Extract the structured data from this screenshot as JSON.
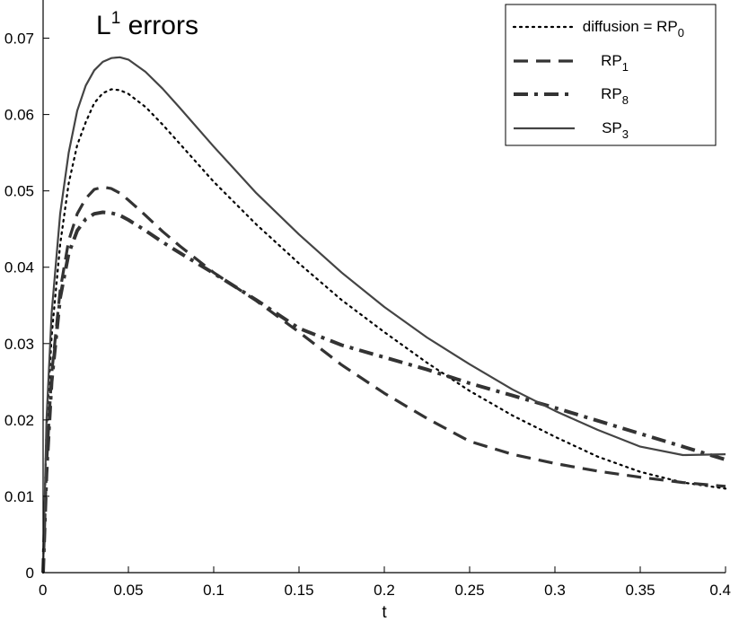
{
  "chart_data": {
    "type": "line",
    "title": "L",
    "title_sup": "1",
    "title_rest": " errors",
    "xlabel": "t",
    "ylabel": "",
    "xlim": [
      0,
      0.4
    ],
    "ylim": [
      0,
      0.075
    ],
    "xticks": [
      0,
      0.05,
      0.1,
      0.15,
      0.2,
      0.25,
      0.3,
      0.35,
      0.4
    ],
    "xtick_labels": [
      "0",
      "0.05",
      "0.1",
      "0.15",
      "0.2",
      "0.25",
      "0.3",
      "0.35",
      "0.4"
    ],
    "yticks": [
      0,
      0.01,
      0.02,
      0.03,
      0.04,
      0.05,
      0.06,
      0.07
    ],
    "ytick_labels": [
      "0",
      "0.01",
      "0.02",
      "0.03",
      "0.04",
      "0.05",
      "0.06",
      "0.07"
    ],
    "grid": false,
    "legend_position": "top-right",
    "series": [
      {
        "name": "diffusion = RP",
        "sub": "0",
        "style": "dotted",
        "color": "#000000",
        "x": [
          0,
          0.002,
          0.005,
          0.01,
          0.015,
          0.02,
          0.025,
          0.03,
          0.035,
          0.04,
          0.045,
          0.05,
          0.06,
          0.07,
          0.08,
          0.1,
          0.125,
          0.15,
          0.175,
          0.2,
          0.225,
          0.25,
          0.275,
          0.3,
          0.325,
          0.35,
          0.375,
          0.4
        ],
        "y": [
          0,
          0.019,
          0.031,
          0.043,
          0.051,
          0.056,
          0.059,
          0.0615,
          0.0628,
          0.0633,
          0.0632,
          0.0627,
          0.061,
          0.0587,
          0.0562,
          0.0512,
          0.0456,
          0.0405,
          0.0357,
          0.0315,
          0.0275,
          0.0238,
          0.0206,
          0.0178,
          0.0152,
          0.0132,
          0.0118,
          0.011
        ]
      },
      {
        "name": "RP",
        "sub": "1",
        "style": "dashed",
        "color": "#333333",
        "x": [
          0,
          0.002,
          0.005,
          0.01,
          0.015,
          0.02,
          0.025,
          0.03,
          0.035,
          0.04,
          0.045,
          0.05,
          0.06,
          0.07,
          0.08,
          0.1,
          0.125,
          0.15,
          0.175,
          0.2,
          0.225,
          0.25,
          0.275,
          0.3,
          0.325,
          0.35,
          0.375,
          0.4
        ],
        "y": [
          0,
          0.014,
          0.026,
          0.037,
          0.0435,
          0.047,
          0.049,
          0.0502,
          0.0505,
          0.0503,
          0.0497,
          0.0488,
          0.0468,
          0.0447,
          0.0428,
          0.0393,
          0.0356,
          0.0315,
          0.0272,
          0.0235,
          0.0202,
          0.0172,
          0.0155,
          0.0143,
          0.0133,
          0.0125,
          0.0118,
          0.0113
        ]
      },
      {
        "name": "RP",
        "sub": "8",
        "style": "dashdot",
        "color": "#333333",
        "x": [
          0,
          0.002,
          0.005,
          0.01,
          0.015,
          0.02,
          0.025,
          0.03,
          0.035,
          0.04,
          0.045,
          0.05,
          0.06,
          0.07,
          0.08,
          0.1,
          0.125,
          0.15,
          0.175,
          0.2,
          0.225,
          0.25,
          0.275,
          0.3,
          0.325,
          0.35,
          0.375,
          0.4
        ],
        "y": [
          0,
          0.013,
          0.025,
          0.036,
          0.0418,
          0.0448,
          0.0463,
          0.047,
          0.0472,
          0.0471,
          0.0468,
          0.0462,
          0.0448,
          0.0433,
          0.0419,
          0.0392,
          0.0357,
          0.032,
          0.0298,
          0.0282,
          0.0266,
          0.0248,
          0.0232,
          0.0216,
          0.0199,
          0.0182,
          0.0165,
          0.0148
        ]
      },
      {
        "name": "SP",
        "sub": "3",
        "style": "solid",
        "color": "#444444",
        "x": [
          0,
          0.002,
          0.005,
          0.01,
          0.015,
          0.02,
          0.025,
          0.03,
          0.035,
          0.04,
          0.045,
          0.05,
          0.06,
          0.07,
          0.08,
          0.1,
          0.125,
          0.15,
          0.175,
          0.2,
          0.225,
          0.25,
          0.275,
          0.3,
          0.325,
          0.35,
          0.375,
          0.4
        ],
        "y": [
          0,
          0.02,
          0.034,
          0.047,
          0.055,
          0.0605,
          0.0638,
          0.0658,
          0.0669,
          0.0674,
          0.0675,
          0.0672,
          0.0656,
          0.0634,
          0.0609,
          0.0558,
          0.0497,
          0.0443,
          0.0393,
          0.0348,
          0.0308,
          0.0273,
          0.024,
          0.0212,
          0.0187,
          0.0165,
          0.0154,
          0.0155
        ]
      }
    ]
  }
}
